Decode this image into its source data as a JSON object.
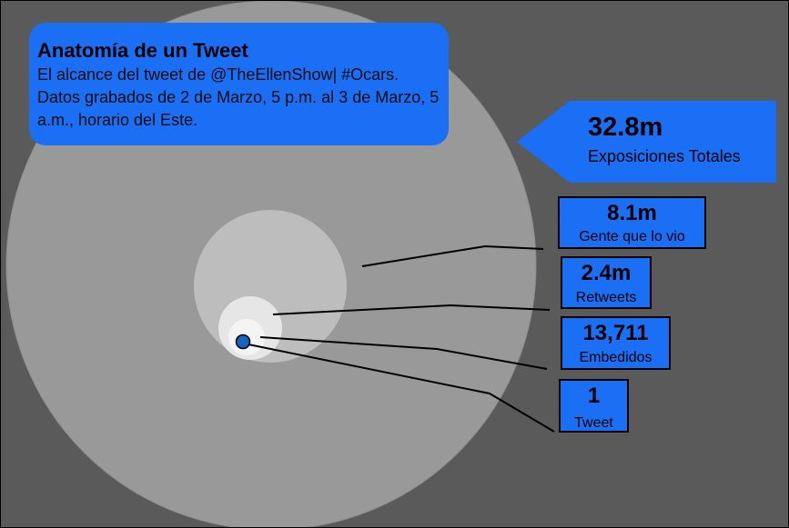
{
  "title": "Anatomía de un Tweet",
  "description": "El alcance del tweet de @TheEllenShow| #Ocars. Datos grabados de 2 de Marzo, 5 p.m. al 3 de Marzo, 5 a.m., horario del Este.",
  "total": {
    "value": "32.8m",
    "label": "Exposiciones Totales"
  },
  "stats": [
    {
      "value": "8.1m",
      "label": "Gente que lo vio"
    },
    {
      "value": "2.4m",
      "label": "Retweets"
    },
    {
      "value": "13,711",
      "label": "Embedidos"
    },
    {
      "value": "1",
      "label": "Tweet"
    }
  ],
  "colors": {
    "background": "#5a5a5a",
    "outer_circle": "#999999",
    "middle_circle": "#bdbdbd",
    "inner_circle": "#e6e6e6",
    "core_circle": "#f4f4f4",
    "accent_blue": "#1a6ff5",
    "tweet_dot": "#1565c0"
  }
}
